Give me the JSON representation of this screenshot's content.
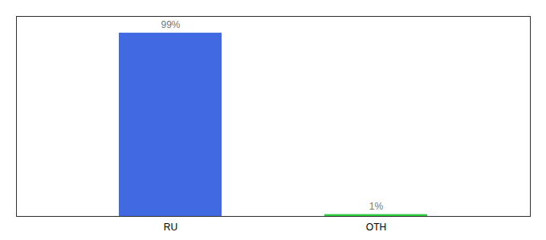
{
  "chart_data": {
    "type": "bar",
    "categories": [
      "RU",
      "OTH"
    ],
    "values": [
      99,
      1
    ],
    "value_labels": [
      "99%",
      "1%"
    ],
    "colors": [
      "#4169e1",
      "#2ecc40"
    ],
    "ylim": [
      0,
      108
    ],
    "data_labels": true,
    "tick_labels": "x",
    "grid": false
  }
}
